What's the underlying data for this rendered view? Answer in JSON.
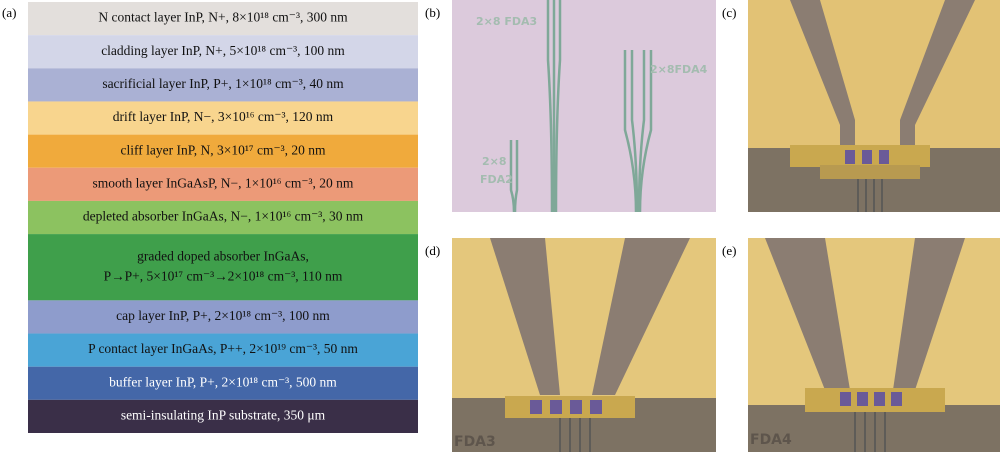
{
  "panels": {
    "a": {
      "label": "(a)",
      "layers": [
        {
          "lines": [
            "N contact layer InP, N+, 8×10¹⁸ cm⁻³, 300 nm"
          ],
          "color": "#e3dfdc"
        },
        {
          "lines": [
            "cladding layer InP, N+, 5×10¹⁸ cm⁻³, 100 nm"
          ],
          "color": "#d3d6e8"
        },
        {
          "lines": [
            "sacrificial layer InP, P+, 1×10¹⁸ cm⁻³, 40 nm"
          ],
          "color": "#aab1d4"
        },
        {
          "lines": [
            "drift layer InP, N−, 3×10¹⁶ cm⁻³, 120 nm"
          ],
          "color": "#f8d58e"
        },
        {
          "lines": [
            "cliff layer InP, N, 3×10¹⁷ cm⁻³, 20 nm"
          ],
          "color": "#f0aa3c"
        },
        {
          "lines": [
            "smooth layer InGaAsP, N−, 1×10¹⁶ cm⁻³, 20 nm"
          ],
          "color": "#ec9a78"
        },
        {
          "lines": [
            "depleted absorber InGaAs, N−, 1×10¹⁶ cm⁻³, 30 nm"
          ],
          "color": "#8cc260"
        },
        {
          "lines": [
            "graded doped absorber InGaAs,",
            "P→P+, 5×10¹⁷ cm⁻³→2×10¹⁸ cm⁻³, 110 nm"
          ],
          "color": "#3f9f4b"
        },
        {
          "lines": [
            "cap layer InP, P+, 2×10¹⁸ cm⁻³, 100 nm"
          ],
          "color": "#8e9ccc"
        },
        {
          "lines": [
            "P contact layer InGaAs, P++, 2×10¹⁹ cm⁻³, 50 nm"
          ],
          "color": "#4aa4d6"
        },
        {
          "lines": [
            "buffer layer InP, P+, 2×10¹⁸ cm⁻³, 500 nm"
          ],
          "color": "#4467a8"
        },
        {
          "lines": [
            "semi-insulating InP substrate, 350 μm"
          ],
          "color": "#3a2f48"
        }
      ]
    },
    "b": {
      "label": "(b)",
      "captions": [
        "2×8 FDA3",
        "2×8FDA4",
        "2×8",
        "FDA2"
      ]
    },
    "c": {
      "label": "(c)"
    },
    "d": {
      "label": "(d)",
      "captions": [
        "FDA3"
      ]
    },
    "e": {
      "label": "(e)",
      "captions": [
        "FDA4"
      ]
    }
  }
}
